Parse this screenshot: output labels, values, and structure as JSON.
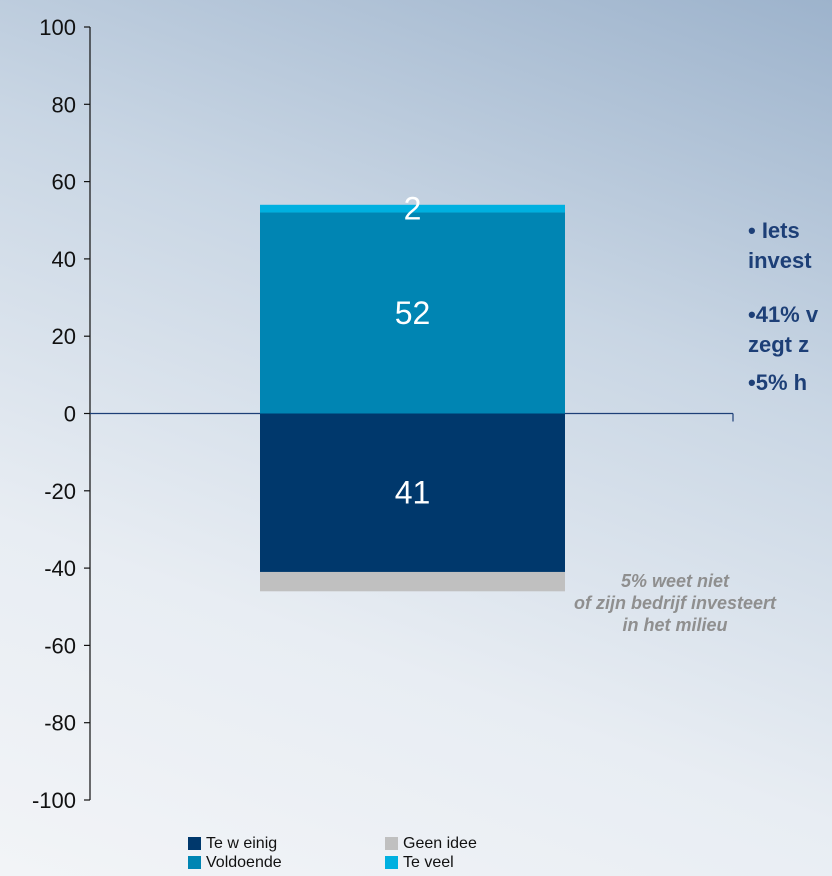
{
  "chart_data": {
    "type": "bar",
    "stacked": true,
    "ylim": [
      -100,
      100
    ],
    "yticks": [
      100,
      80,
      60,
      40,
      20,
      0,
      -20,
      -40,
      -60,
      -80,
      -100
    ],
    "grid": false,
    "legend_position": "bottom",
    "series": [
      {
        "name": "Voldoende",
        "value": 52,
        "label": "52",
        "color": "#0085b3"
      },
      {
        "name": "Te veel",
        "value": 2,
        "label": "2",
        "color": "#00b0e0"
      },
      {
        "name": "Te w einig",
        "value": -41,
        "label": "41",
        "color": "#00386c"
      },
      {
        "name": "Geen idee",
        "value": -5,
        "label": "",
        "color": "#c0c0c0"
      }
    ],
    "legend": [
      {
        "name": "Te w einig",
        "color": "#00386c"
      },
      {
        "name": "Geen idee",
        "color": "#c0c0c0"
      },
      {
        "name": "Voldoende",
        "color": "#0085b3"
      },
      {
        "name": "Te veel",
        "color": "#00b0e0"
      }
    ]
  },
  "annotations": {
    "line1a": "• Iets",
    "line1b": "invest",
    "line2a": "•41% v",
    "line2b": "zegt z",
    "line3": "•5% h"
  },
  "note": {
    "line1": "5% weet niet",
    "line2": "of zijn bedrijf investeert",
    "line3": "in het milieu"
  }
}
